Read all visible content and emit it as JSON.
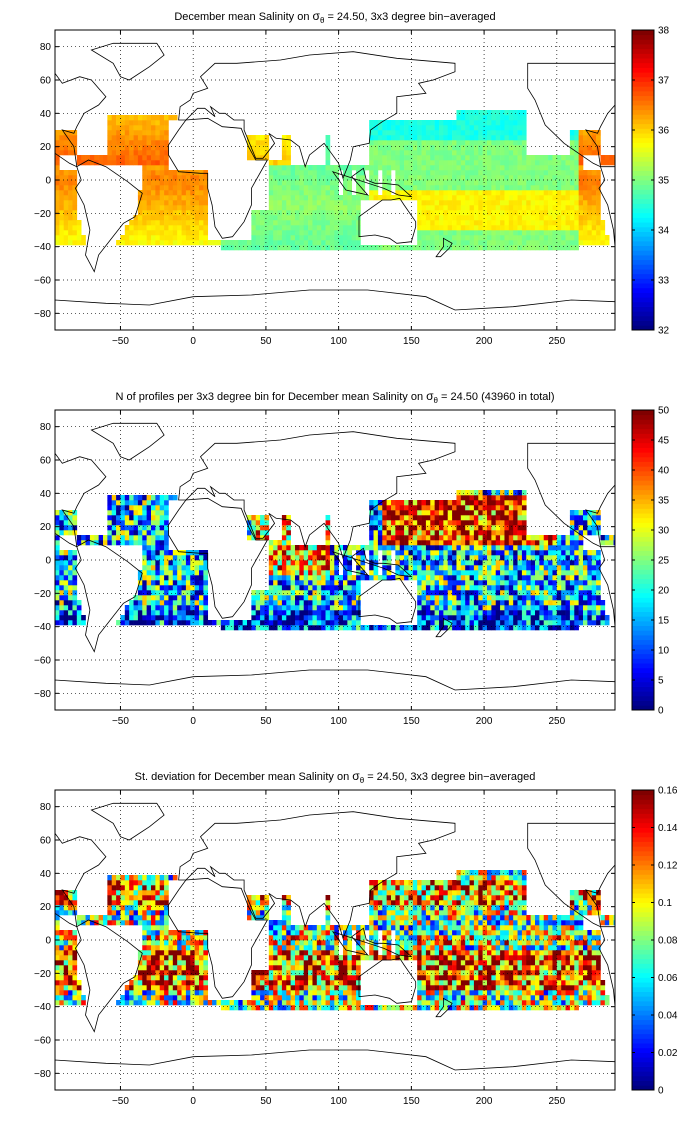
{
  "panels": [
    {
      "id": "salinity",
      "title_pre": "December mean Salinity on ",
      "title_sigma": "σ",
      "title_sub": "θ",
      "title_post": " = 24.50, 3x3 degree bin−averaged",
      "colorbar": {
        "min": 32,
        "max": 38,
        "ticks": [
          32,
          33,
          34,
          35,
          36,
          37,
          38
        ]
      }
    },
    {
      "id": "profiles",
      "title_pre": "N of profiles per 3x3 degree bin for December mean Salinity on ",
      "title_sigma": "σ",
      "title_sub": "θ",
      "title_post": " = 24.50 (43960 in total)",
      "colorbar": {
        "min": 0,
        "max": 50,
        "ticks": [
          0,
          5,
          10,
          15,
          20,
          25,
          30,
          35,
          40,
          45,
          50
        ]
      }
    },
    {
      "id": "stdev",
      "title_pre": "St. deviation for December mean Salinity on ",
      "title_sigma": "σ",
      "title_sub": "θ",
      "title_post": " = 24.50, 3x3 degree bin−averaged",
      "colorbar": {
        "min": 0,
        "max": 0.16,
        "ticks": [
          0,
          0.02,
          0.04,
          0.06,
          0.08,
          0.1,
          0.12,
          0.14,
          0.16
        ]
      }
    }
  ],
  "axes": {
    "x_ticks": [
      -50,
      0,
      50,
      100,
      150,
      200,
      250
    ],
    "y_ticks": [
      -80,
      -60,
      -40,
      -20,
      0,
      20,
      40,
      60,
      80
    ],
    "xlim": [
      -95,
      290
    ],
    "ylim": [
      -90,
      90
    ],
    "grid": "dotted"
  },
  "colormap": "jet"
}
